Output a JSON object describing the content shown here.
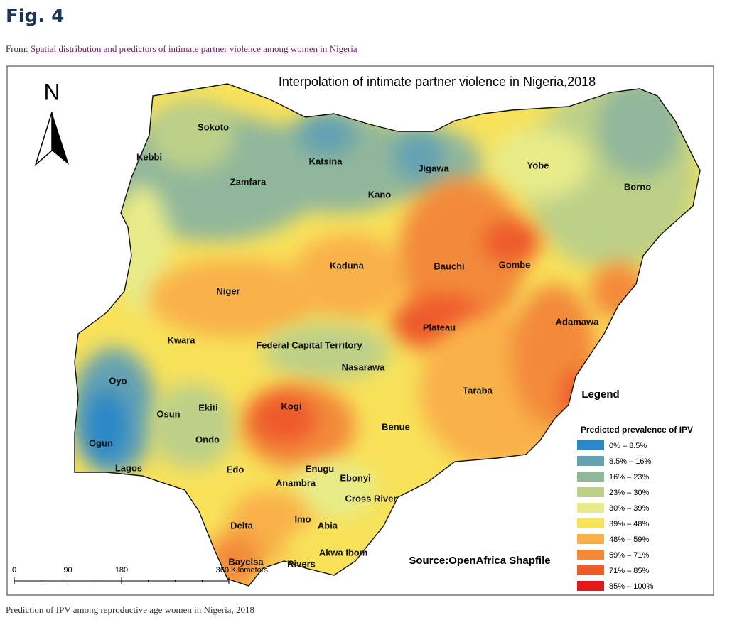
{
  "header": {
    "figure": "Fig. 4",
    "from": "From:",
    "link": "Spatial distribution and predictors of intimate partner violence among women in Nigeria"
  },
  "map": {
    "title": "Interpolation of intimate partner violence in Nigeria,2018",
    "north": "N",
    "states": [
      "Sokoto",
      "Kebbi",
      "Katsina",
      "Jigawa",
      "Yobe",
      "Zamfara",
      "Kano",
      "Borno",
      "Kaduna",
      "Bauchi",
      "Gombe",
      "Niger",
      "Plateau",
      "Adamawa",
      "Kwara",
      "Federal Capital Territory",
      "Nasarawa",
      "Oyo",
      "Taraba",
      "Osun",
      "Ekiti",
      "Kogi",
      "Benue",
      "Ogun",
      "Ondo",
      "Edo",
      "Lagos",
      "Enugu",
      "Anambra",
      "Ebonyi",
      "Cross River",
      "Delta",
      "Imo",
      "Abia",
      "Akwa Ibom",
      "Bayelsa",
      "Rivers"
    ],
    "legend": {
      "title": "Legend",
      "subtitle": "Predicted prevalence of IPV",
      "items": [
        {
          "label": "0% – 8.5%",
          "color": "#2a87c8"
        },
        {
          "label": "8.5% – 16%",
          "color": "#63a1b2"
        },
        {
          "label": "16% – 23%",
          "color": "#91b79b"
        },
        {
          "label": "23% – 30%",
          "color": "#bdd088"
        },
        {
          "label": "30% – 39%",
          "color": "#e7eb89"
        },
        {
          "label": "39% – 48%",
          "color": "#f8e25a"
        },
        {
          "label": "48% – 59%",
          "color": "#f9b14a"
        },
        {
          "label": "59% – 71%",
          "color": "#f38a3a"
        },
        {
          "label": "71% – 85%",
          "color": "#ee5a2a"
        },
        {
          "label": "85% – 100%",
          "color": "#e3191c"
        }
      ]
    },
    "source": "Source:OpenAfrica Shapfile",
    "scale": {
      "ticks": [
        0,
        90,
        180,
        360
      ],
      "unit": "Kilometers"
    }
  },
  "caption": "Prediction of IPV among reproductive age women in Nigeria, 2018"
}
